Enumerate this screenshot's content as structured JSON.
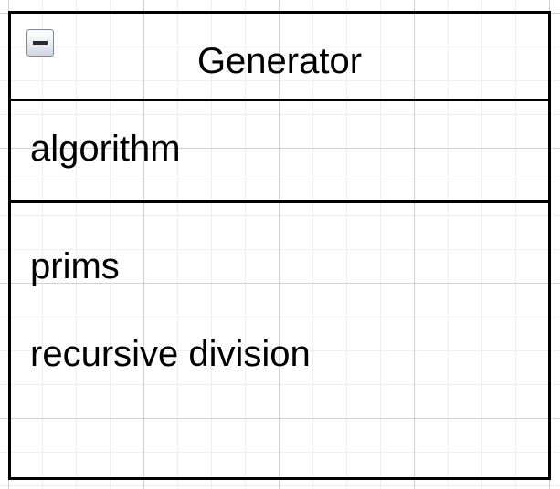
{
  "class_box": {
    "title": "Generator",
    "collapse_icon": "minus-square-icon",
    "attributes": [
      "algorithm"
    ],
    "operations": [
      "prims",
      "recursive division"
    ]
  },
  "colors": {
    "border": "#000000",
    "grid_major": "#d2d2d2",
    "grid_minor": "#efefef",
    "toggle_border": "#7c8aa0"
  }
}
